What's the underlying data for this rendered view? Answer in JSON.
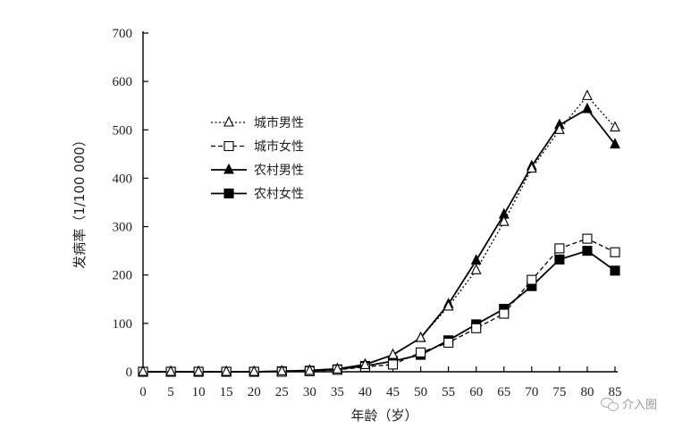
{
  "chart_data": {
    "type": "line",
    "xlabel": "年龄（岁）",
    "ylabel": "发病率（1/100 000）",
    "x": [
      0,
      5,
      10,
      15,
      20,
      25,
      30,
      35,
      40,
      45,
      50,
      55,
      60,
      65,
      70,
      75,
      80,
      85
    ],
    "xlim": [
      0,
      85
    ],
    "ylim": [
      0,
      700
    ],
    "xticks": [
      "0",
      "5",
      "10",
      "15",
      "20",
      "25",
      "30",
      "35",
      "40",
      "45",
      "50",
      "55",
      "60",
      "65",
      "70",
      "75",
      "80",
      "85"
    ],
    "yticks": [
      "0",
      "100",
      "200",
      "300",
      "400",
      "500",
      "600",
      "700"
    ],
    "grid": false,
    "legend_position": "upper-left",
    "series": [
      {
        "name": "城市男性",
        "marker": "open-triangle",
        "line": "dotted",
        "color": "#000000",
        "values": [
          0,
          0,
          0,
          0,
          0,
          1,
          2,
          5,
          14,
          35,
          70,
          135,
          210,
          310,
          420,
          500,
          570,
          505
        ]
      },
      {
        "name": "城市女性",
        "marker": "open-square",
        "line": "dashed",
        "color": "#000000",
        "values": [
          0,
          0,
          0,
          0,
          0,
          0,
          1,
          4,
          10,
          15,
          40,
          60,
          90,
          120,
          190,
          255,
          275,
          247
        ]
      },
      {
        "name": "农村男性",
        "marker": "filled-triangle",
        "line": "solid",
        "color": "#000000",
        "values": [
          0,
          0,
          0,
          0,
          0,
          1,
          3,
          6,
          15,
          35,
          70,
          140,
          230,
          325,
          425,
          510,
          543,
          470
        ]
      },
      {
        "name": "农村女性",
        "marker": "filled-square",
        "line": "solid",
        "color": "#000000",
        "values": [
          0,
          0,
          0,
          0,
          0,
          1,
          2,
          5,
          12,
          22,
          35,
          65,
          98,
          130,
          177,
          232,
          250,
          209
        ]
      }
    ]
  },
  "watermark": {
    "icon": "wechat-icon",
    "text": "介入圈"
  }
}
